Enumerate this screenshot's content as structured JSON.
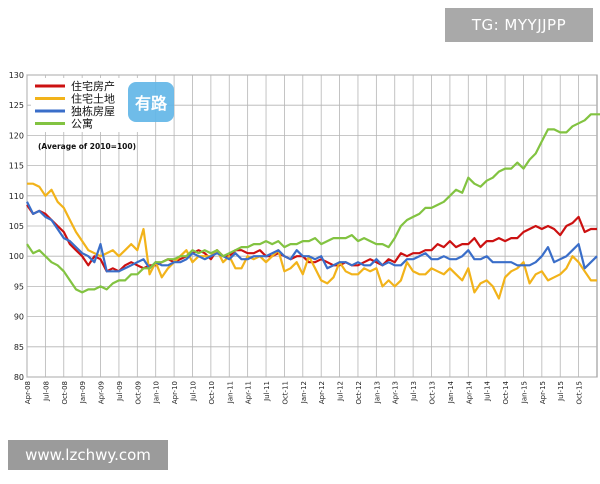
{
  "watermark_top": "TG: MYYJJPP",
  "watermark_bottom": "www.lzchwy.com",
  "logo_text": "有路",
  "chart_data": {
    "type": "line",
    "note": "(Average of 2010=100)",
    "ylim": [
      80,
      130
    ],
    "yticks": [
      80,
      85,
      90,
      95,
      100,
      105,
      110,
      115,
      120,
      125,
      130
    ],
    "x_tick_labels": [
      "Apr-08",
      "Jul-08",
      "Oct-08",
      "Jan-09",
      "Apr-09",
      "Jul-09",
      "Oct-09",
      "Jan-10",
      "Apr-10",
      "Jul-10",
      "Oct-10",
      "Jan-11",
      "Apr-11",
      "Jul-11",
      "Oct-11",
      "Jan-12",
      "Apr-12",
      "Jul-12",
      "Oct-12",
      "Jan-13",
      "Apr-13",
      "Jul-13",
      "Oct-13",
      "Jan-14",
      "Apr-14",
      "Jul-14",
      "Oct-14",
      "Jan-15",
      "Apr-15",
      "Jul-15",
      "Oct-15"
    ],
    "legend_position": "top-left",
    "grid": true,
    "x_start": "Apr-08",
    "x_step": "month",
    "series": [
      {
        "name": "住宅房产",
        "color": "#cc1111",
        "values": [
          108.5,
          107,
          107.5,
          107,
          106,
          105,
          104,
          102,
          101,
          100,
          98.5,
          100,
          99.5,
          97.5,
          98,
          97.5,
          98.5,
          99,
          98.5,
          98,
          98.5,
          98.5,
          99,
          99.5,
          99,
          99.5,
          100,
          100.5,
          101,
          100.5,
          99.5,
          101,
          100,
          100,
          101,
          101,
          100.5,
          100.5,
          101,
          100,
          100,
          100.5,
          100,
          99.5,
          100,
          100,
          99,
          99,
          99.5,
          99,
          98.5,
          98.5,
          99,
          98.5,
          98.5,
          99,
          99.5,
          99,
          98.5,
          99.5,
          99,
          100.5,
          100,
          100.5,
          100.5,
          101,
          101,
          102,
          101.5,
          102.5,
          101.5,
          102,
          102,
          103,
          101.5,
          102.5,
          102.5,
          103,
          102.5,
          103,
          103,
          104,
          104.5,
          105,
          104.5,
          105,
          104.5,
          103.5,
          105,
          105.5,
          106.5,
          104,
          104.5,
          104.5
        ]
      },
      {
        "name": "住宅土地",
        "color": "#f2b31a",
        "values": [
          112,
          112,
          111.5,
          110,
          111,
          109,
          108,
          106,
          104,
          102.5,
          101,
          100.5,
          100,
          100.5,
          101,
          100,
          101,
          102,
          101,
          104.5,
          97,
          99,
          96.5,
          98,
          99,
          100,
          101,
          99,
          100,
          100,
          100,
          101,
          99,
          100,
          98,
          98,
          100,
          99.5,
          100,
          99,
          100,
          101,
          97.5,
          98,
          99,
          97,
          100,
          98,
          96,
          95.5,
          96.5,
          99,
          97.5,
          97,
          97,
          98,
          97.5,
          98,
          95,
          96,
          95,
          96,
          99,
          97.5,
          97,
          97,
          98,
          97.5,
          97,
          98,
          97,
          96,
          98,
          94,
          95.5,
          96,
          95,
          93,
          96.5,
          97.5,
          98,
          99,
          95.5,
          97,
          97.5,
          96,
          96.5,
          97,
          98,
          100,
          99,
          97.5,
          96,
          96
        ]
      },
      {
        "name": "独栋房屋",
        "color": "#3a6ec9",
        "values": [
          109,
          107,
          107.5,
          106.5,
          106,
          104.5,
          103,
          102.5,
          101.5,
          100.5,
          100,
          99,
          102,
          97.5,
          97.5,
          97.5,
          98,
          98.5,
          99,
          99.5,
          98,
          99,
          98.5,
          98.5,
          99,
          99,
          99.5,
          100.5,
          100,
          99.5,
          100,
          100.5,
          100,
          99.5,
          100.5,
          99.5,
          99.5,
          100,
          100,
          100,
          100.5,
          101,
          100,
          99.5,
          101,
          100,
          100,
          99.5,
          100,
          98,
          98.5,
          99,
          99,
          98.5,
          99,
          98.5,
          98.5,
          99.5,
          98.5,
          99,
          98.5,
          98.5,
          99.5,
          99.5,
          100,
          100.5,
          99.5,
          99.5,
          100,
          99.5,
          99.5,
          100,
          101,
          99.5,
          99.5,
          100,
          99,
          99,
          99,
          99,
          98.5,
          98.5,
          98.5,
          99,
          100,
          101.5,
          99,
          99.5,
          100,
          101,
          102,
          98,
          99,
          100
        ]
      },
      {
        "name": "公寓",
        "color": "#82c341",
        "values": [
          102,
          100.5,
          101,
          100,
          99,
          98.5,
          97.5,
          96,
          94.5,
          94,
          94.5,
          94.5,
          95,
          94.5,
          95.5,
          96,
          96,
          97,
          97,
          98,
          98,
          99,
          99,
          99.5,
          99.5,
          100,
          100,
          101,
          100.5,
          101,
          100.5,
          101,
          100,
          100.5,
          101,
          101.5,
          101.5,
          102,
          102,
          102.5,
          102,
          102.5,
          101.5,
          102,
          102,
          102.5,
          102.5,
          103,
          102,
          102.5,
          103,
          103,
          103,
          103.5,
          102.5,
          103,
          102.5,
          102,
          102,
          101.5,
          103,
          105,
          106,
          106.5,
          107,
          108,
          108,
          108.5,
          109,
          110,
          111,
          110.5,
          113,
          112,
          111.5,
          112.5,
          113,
          114,
          114.5,
          114.5,
          115.5,
          114.5,
          116,
          117,
          119,
          121,
          121,
          120.5,
          120.5,
          121.5,
          122,
          122.5,
          123.5,
          123.5,
          123.5
        ]
      }
    ]
  }
}
